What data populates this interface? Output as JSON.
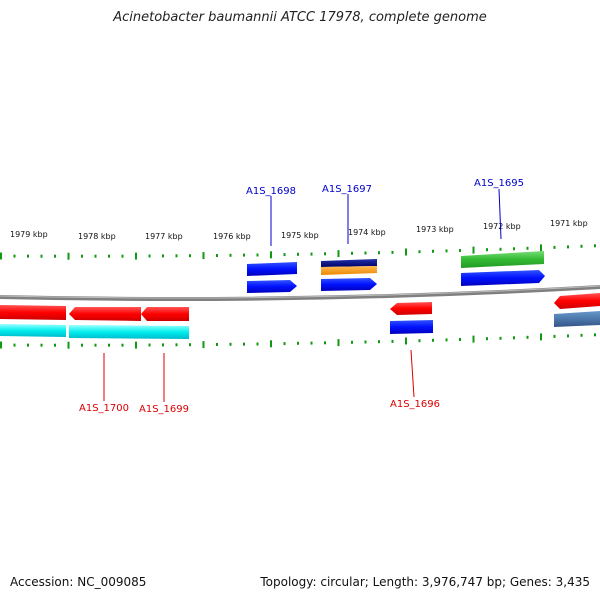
{
  "title": "Acinetobacter baumannii ATCC 17978, complete genome",
  "footer": {
    "accession": "Accession: NC_009085",
    "summary": "Topology: circular; Length: 3,976,747 bp; Genes: 3,435"
  },
  "colors": {
    "forward_label": "#0000cc",
    "reverse_label": "#dd0000",
    "tick": "#119911",
    "backbone": "#888888"
  },
  "scale": {
    "unit": "kbp",
    "labels": [
      "1979 kbp",
      "1978 kbp",
      "1977 kbp",
      "1976 kbp",
      "1975 kbp",
      "1974 kbp",
      "1973 kbp",
      "1972 kbp",
      "1971 kbp"
    ]
  },
  "gene_labels": {
    "forward": [
      "A1S_1698",
      "A1S_1697",
      "A1S_1695"
    ],
    "reverse": [
      "A1S_1700",
      "A1S_1699",
      "A1S_1696"
    ]
  }
}
